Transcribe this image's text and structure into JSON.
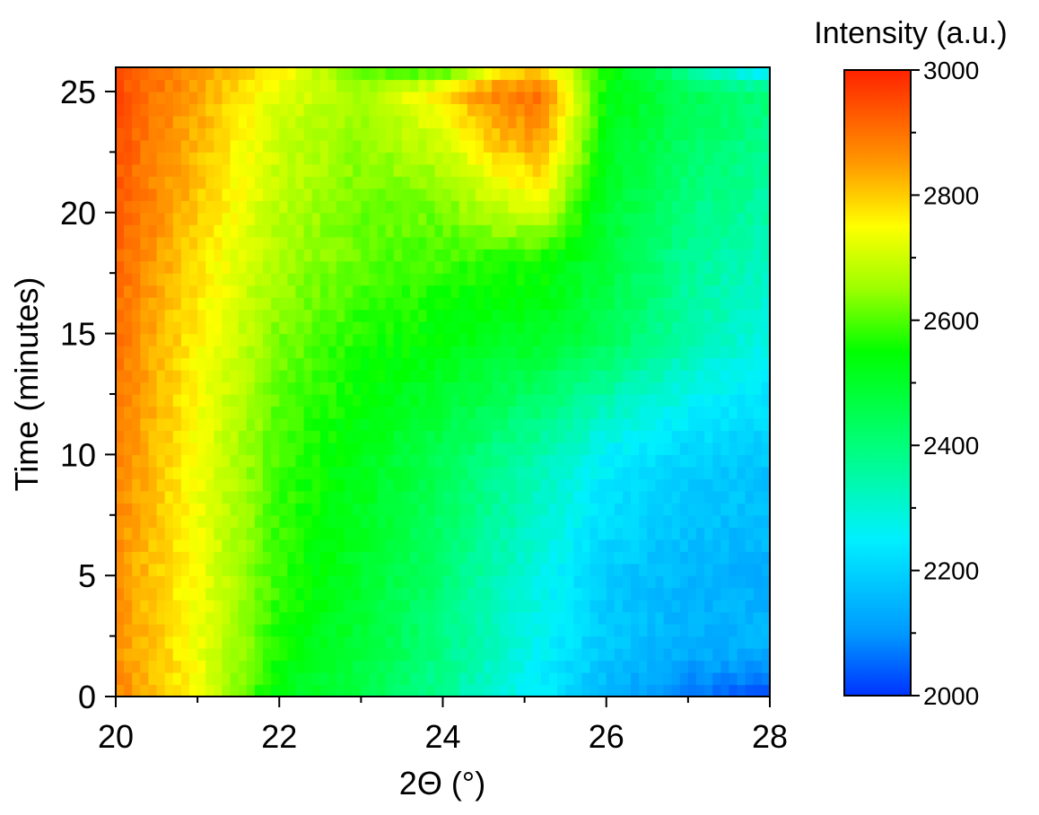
{
  "chart_data": {
    "type": "heatmap",
    "xlabel": "2Θ (°)",
    "ylabel": "Time (minutes)",
    "xlim": [
      20,
      28
    ],
    "ylim": [
      0,
      26
    ],
    "x_ticks": [
      "20",
      "22",
      "24",
      "26",
      "28"
    ],
    "y_ticks": [
      "0",
      "5",
      "10",
      "15",
      "20",
      "25"
    ],
    "colorbar": {
      "title": "Intensity (a.u.)",
      "min": 2000,
      "max": 3000,
      "ticks": [
        "2000",
        "2200",
        "2400",
        "2600",
        "2800",
        "3000"
      ],
      "colormap": "rainbow (blue-cyan-green-yellow-red)",
      "stops": [
        {
          "value": 2000,
          "color": "#0033ff"
        },
        {
          "value": 2100,
          "color": "#0099ff"
        },
        {
          "value": 2250,
          "color": "#00f0ff"
        },
        {
          "value": 2400,
          "color": "#00ff7a"
        },
        {
          "value": 2550,
          "color": "#00ff00"
        },
        {
          "value": 2650,
          "color": "#9cff00"
        },
        {
          "value": 2750,
          "color": "#ffff00"
        },
        {
          "value": 2850,
          "color": "#ff9900"
        },
        {
          "value": 3000,
          "color": "#ff2200"
        }
      ]
    },
    "x": [
      20,
      21,
      22,
      23,
      24,
      24.6,
      25.2,
      26,
      27,
      28
    ],
    "y": [
      0,
      2,
      5,
      10,
      15,
      18,
      20,
      23,
      25,
      26
    ],
    "z": [
      [
        2880,
        2740,
        2520,
        2460,
        2370,
        2300,
        2250,
        2150,
        2060,
        2020
      ],
      [
        2860,
        2740,
        2560,
        2480,
        2390,
        2320,
        2260,
        2180,
        2140,
        2150
      ],
      [
        2860,
        2740,
        2580,
        2500,
        2410,
        2340,
        2280,
        2190,
        2150,
        2140
      ],
      [
        2880,
        2740,
        2590,
        2520,
        2450,
        2390,
        2340,
        2250,
        2200,
        2180
      ],
      [
        2900,
        2760,
        2630,
        2570,
        2540,
        2520,
        2510,
        2450,
        2350,
        2280
      ],
      [
        2920,
        2780,
        2660,
        2610,
        2590,
        2570,
        2560,
        2480,
        2370,
        2320
      ],
      [
        2930,
        2800,
        2680,
        2620,
        2620,
        2680,
        2700,
        2490,
        2390,
        2350
      ],
      [
        2940,
        2820,
        2700,
        2640,
        2700,
        2800,
        2850,
        2520,
        2430,
        2380
      ],
      [
        2950,
        2840,
        2720,
        2660,
        2780,
        2880,
        2900,
        2540,
        2450,
        2400
      ],
      [
        2960,
        2860,
        2780,
        2600,
        2550,
        2700,
        2800,
        2560,
        2350,
        2200
      ]
    ]
  }
}
